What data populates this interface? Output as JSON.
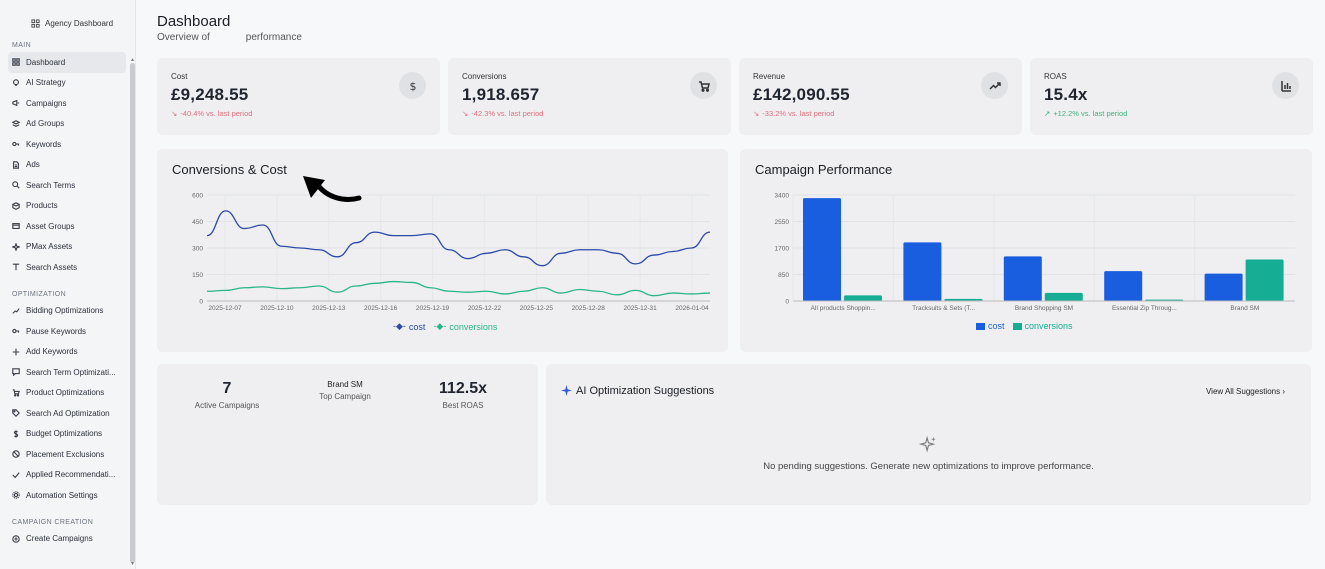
{
  "brand": {
    "title": "Agency Dashboard"
  },
  "sidebar": {
    "sections": [
      {
        "title": "MAIN",
        "items": [
          {
            "label": "Dashboard",
            "icon": "grid-icon",
            "active": true
          },
          {
            "label": "AI Strategy",
            "icon": "lightbulb-icon"
          },
          {
            "label": "Campaigns",
            "icon": "megaphone-icon"
          },
          {
            "label": "Ad Groups",
            "icon": "layers-icon"
          },
          {
            "label": "Keywords",
            "icon": "key-icon"
          },
          {
            "label": "Ads",
            "icon": "file-icon"
          },
          {
            "label": "Search Terms",
            "icon": "search-icon"
          },
          {
            "label": "Products",
            "icon": "box-icon"
          },
          {
            "label": "Asset Groups",
            "icon": "folders-icon"
          },
          {
            "label": "PMax Assets",
            "icon": "sparkle-icon"
          },
          {
            "label": "Search Assets",
            "icon": "text-icon"
          }
        ]
      },
      {
        "title": "OPTIMIZATION",
        "items": [
          {
            "label": "Bidding Optimizations",
            "icon": "trend-icon"
          },
          {
            "label": "Pause Keywords",
            "icon": "key-icon"
          },
          {
            "label": "Add Keywords",
            "icon": "plus-icon"
          },
          {
            "label": "Search Term Optimizati...",
            "icon": "chat-icon"
          },
          {
            "label": "Product Optimizations",
            "icon": "cart-icon"
          },
          {
            "label": "Search Ad Optimization",
            "icon": "tag-icon"
          },
          {
            "label": "Budget Optimizations",
            "icon": "dollar-icon"
          },
          {
            "label": "Placement Exclusions",
            "icon": "ban-icon"
          },
          {
            "label": "Applied Recommendati...",
            "icon": "check-icon"
          },
          {
            "label": "Automation Settings",
            "icon": "gear-icon"
          }
        ]
      },
      {
        "title": "CAMPAIGN CREATION",
        "items": [
          {
            "label": "Create Campaigns",
            "icon": "plus-circle-icon"
          }
        ]
      }
    ]
  },
  "header": {
    "title": "Dashboard",
    "subtitle_left": "Overview of",
    "subtitle_right": "performance"
  },
  "kpis": [
    {
      "label": "Cost",
      "value": "£9,248.55",
      "change": "-40.4% vs. last period",
      "trend": "down",
      "icon": "dollar-icon"
    },
    {
      "label": "Conversions",
      "value": "1,918.657",
      "change": "-42.3% vs. last period",
      "trend": "down",
      "icon": "cart-icon"
    },
    {
      "label": "Revenue",
      "value": "£142,090.55",
      "change": "-33.2% vs. last period",
      "trend": "down",
      "icon": "trend-up-icon"
    },
    {
      "label": "ROAS",
      "value": "15.4x",
      "change": "+12.2% vs. last period",
      "trend": "up",
      "icon": "bar-chart-icon"
    }
  ],
  "colors": {
    "cost_line": "#2b4aa8",
    "conv_line": "#2bb58a",
    "cost_bar": "#1a5ee0",
    "conv_bar": "#15ad94"
  },
  "chart_data": [
    {
      "type": "line",
      "title": "Conversions & Cost",
      "x_ticks": [
        "2025-12-07",
        "2025-12-10",
        "2025-12-13",
        "2025-12-16",
        "2025-12-19",
        "2025-12-22",
        "2025-12-25",
        "2025-12-28",
        "2025-12-31",
        "2026-01-04"
      ],
      "y_ticks": [
        "0",
        "150",
        "300",
        "450",
        "600"
      ],
      "ylim": [
        0,
        600
      ],
      "series": [
        {
          "name": "cost",
          "values": [
            370,
            510,
            410,
            430,
            310,
            300,
            290,
            250,
            330,
            390,
            370,
            370,
            380,
            290,
            240,
            270,
            290,
            250,
            200,
            270,
            290,
            290,
            270,
            210,
            260,
            280,
            300,
            390
          ]
        },
        {
          "name": "conversions",
          "values": [
            55,
            60,
            75,
            80,
            70,
            75,
            85,
            50,
            85,
            100,
            110,
            105,
            75,
            55,
            50,
            55,
            40,
            55,
            75,
            45,
            65,
            55,
            35,
            60,
            30,
            45,
            40,
            45
          ]
        }
      ],
      "legend": "bottom"
    },
    {
      "type": "bar",
      "title": "Campaign Performance",
      "categories": [
        "All products Shoppin...",
        "Tracksuits & Sets (T...",
        "Brand Shopping SM",
        "Essential Zip Throug...",
        "Brand SM"
      ],
      "y_ticks": [
        "0",
        "850",
        "1700",
        "2550",
        "3400"
      ],
      "ylim": [
        0,
        3400
      ],
      "series": [
        {
          "name": "cost",
          "values": [
            3300,
            1880,
            1430,
            960,
            880
          ]
        },
        {
          "name": "conversions",
          "values": [
            180,
            70,
            260,
            45,
            1330
          ]
        }
      ],
      "legend": "bottom"
    }
  ],
  "stats": {
    "active": {
      "value": "7",
      "label": "Active Campaigns"
    },
    "top": {
      "value": "Brand SM",
      "label": "Top Campaign"
    },
    "roas": {
      "value": "112.5x",
      "label": "Best ROAS"
    }
  },
  "ai": {
    "title": "AI Optimization Suggestions",
    "link": "View All Suggestions",
    "empty": "No pending suggestions. Generate new optimizations to improve performance."
  }
}
